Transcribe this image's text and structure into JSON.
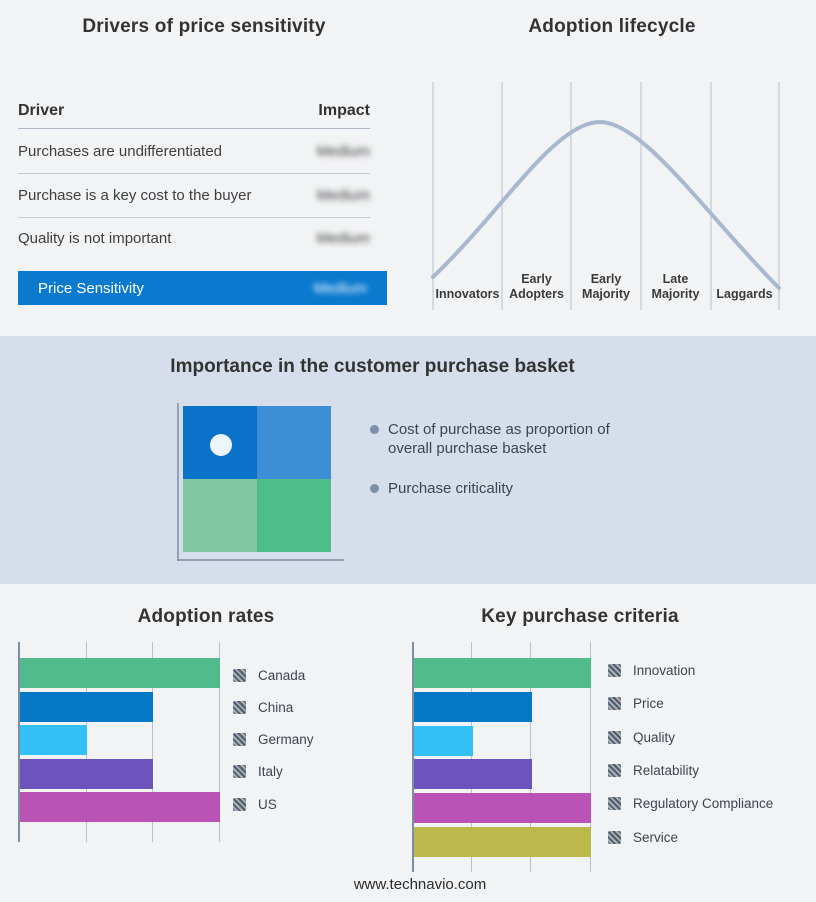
{
  "panels": {
    "drivers": {
      "title": "Drivers of price sensitivity",
      "col_driver": "Driver",
      "col_impact": "Impact"
    },
    "lifecycle": {
      "title": "Adoption lifecycle"
    },
    "basket": {
      "title": "Importance in the customer purchase basket",
      "bullet_1": "Cost of purchase as proportion of overall purchase basket",
      "bullet_2": "Purchase criticality"
    },
    "adoption_rates": {
      "title": "Adoption rates"
    },
    "key_criteria": {
      "title": "Key purchase criteria"
    }
  },
  "footer": {
    "url": "www.technavio.com"
  },
  "colors": {
    "page_bg": "#f2f3f4",
    "band_bg": "#d5deea",
    "highlight_blue": "#0a79ce",
    "curve": "#a9b8ce",
    "gridline": "#b5c0d0",
    "axis": "#7d8da3",
    "quadrant_top_left": "#0a72c8",
    "quadrant_top_right": "#3e8ed6",
    "quadrant_bottom_left": "#80c7a2",
    "quadrant_bottom_right": "#4fbd8a",
    "quadrant_dot": "#ecf5fb",
    "bullet_dot": "#7d90a9"
  },
  "chart_data": [
    {
      "type": "table",
      "title": "Drivers of price sensitivity",
      "columns": [
        "Driver",
        "Impact"
      ],
      "rows": [
        [
          "Purchases are undifferentiated",
          "Medium"
        ],
        [
          "Purchase is a key cost to the buyer",
          "Medium"
        ],
        [
          "Quality is not important",
          "Medium"
        ],
        [
          "Price Sensitivity",
          "Medium"
        ]
      ],
      "notes": "Impact values are blurred in the source image; last row is highlighted in blue"
    },
    {
      "type": "line",
      "title": "Adoption lifecycle",
      "categories": [
        "Innovators",
        "Early Adopters",
        "Early Majority",
        "Late Majority",
        "Laggards"
      ],
      "description": "Bell-shaped adoption curve peaking at Early Majority",
      "x": [
        0,
        2.35,
        5
      ],
      "y": [
        0.08,
        1.0,
        0.0
      ],
      "grid": true
    },
    {
      "type": "bar",
      "title": "Adoption rates",
      "orientation": "horizontal",
      "categories": [
        "Canada",
        "China",
        "Germany",
        "Italy",
        "US"
      ],
      "values": [
        3,
        2,
        1,
        2,
        3
      ],
      "colors": [
        "#52bb8c",
        "#0678c8",
        "#33c1f5",
        "#6c54bd",
        "#bb53b5"
      ],
      "xlim": [
        0,
        3
      ],
      "grid": true,
      "legend_position": "right"
    },
    {
      "type": "bar",
      "title": "Key purchase criteria",
      "orientation": "horizontal",
      "categories": [
        "Innovation",
        "Price",
        "Quality",
        "Relatability",
        "Regulatory Compliance",
        "Service"
      ],
      "values": [
        3,
        2,
        1,
        2,
        3,
        3
      ],
      "colors": [
        "#52bb8c",
        "#0678c8",
        "#33c1f5",
        "#6c54bd",
        "#bb53b5",
        "#bdb84b"
      ],
      "xlim": [
        0,
        3
      ],
      "grid": true,
      "legend_position": "right"
    }
  ]
}
